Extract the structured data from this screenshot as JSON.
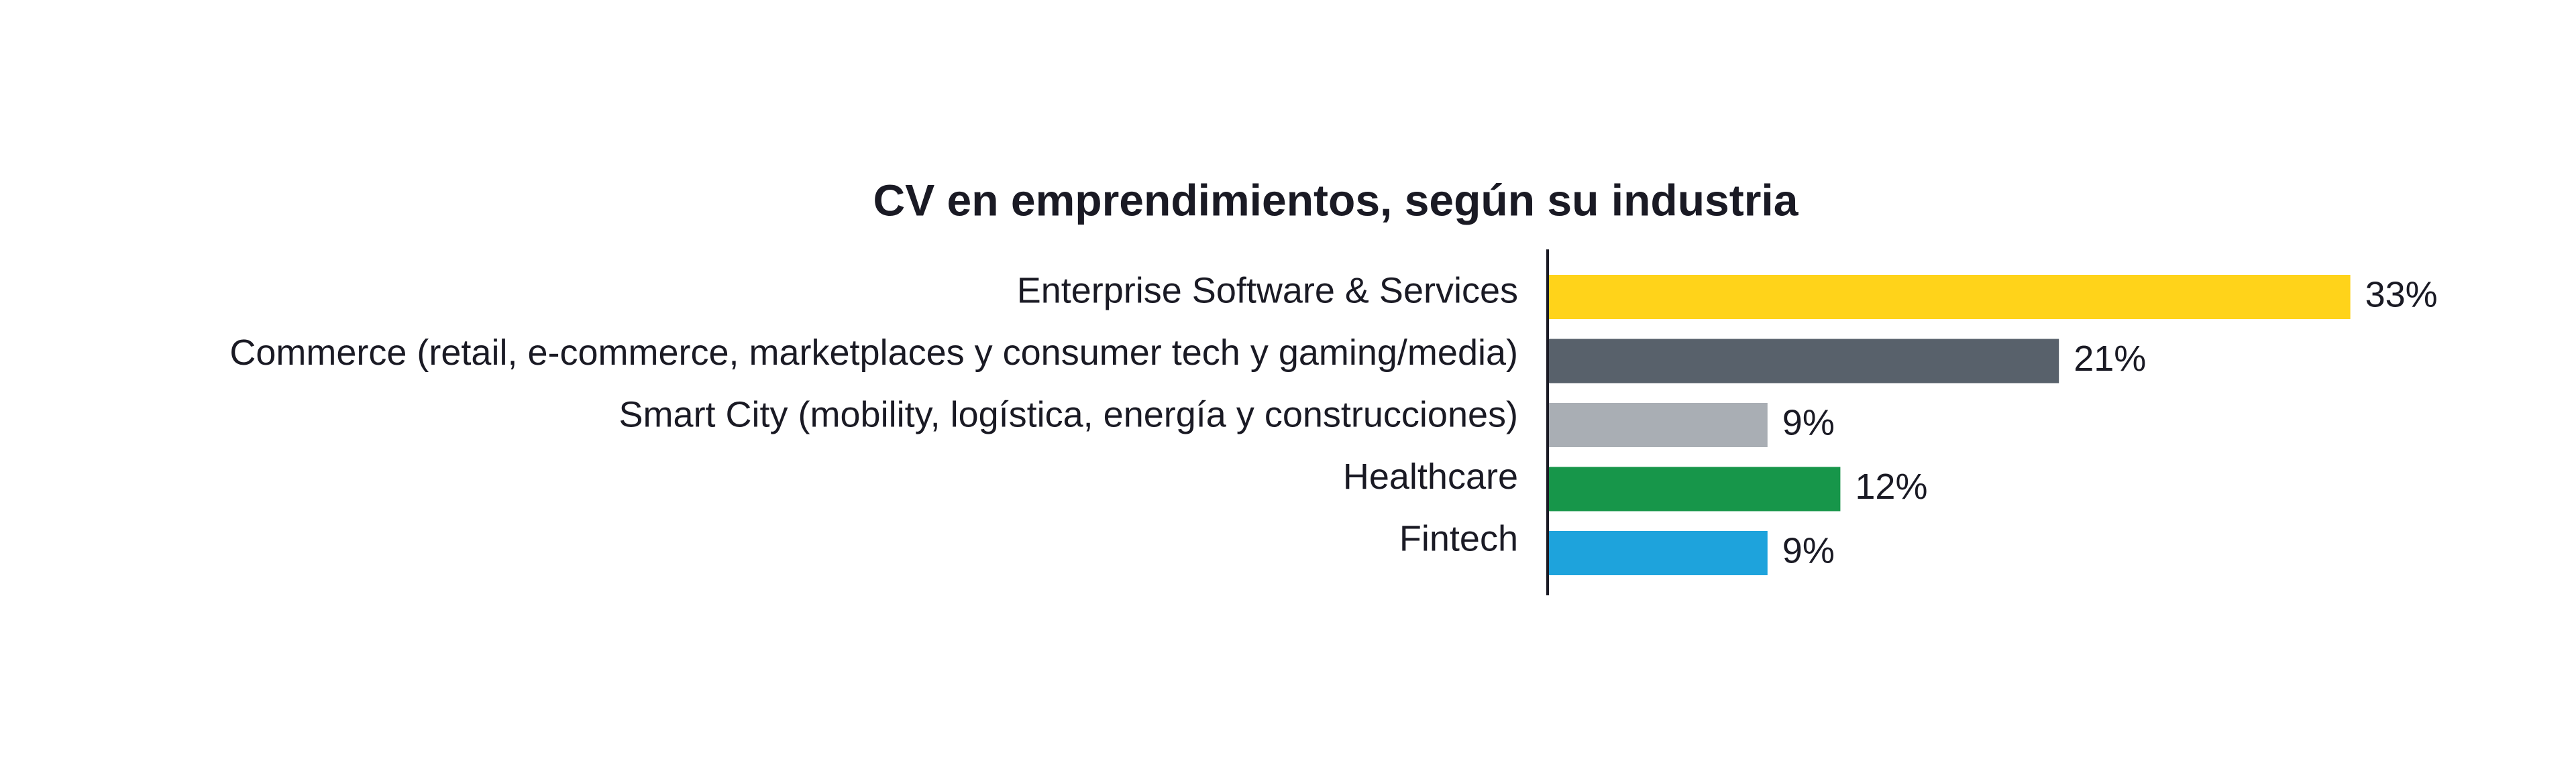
{
  "chart_data": {
    "type": "bar",
    "orientation": "horizontal",
    "title": "CV en emprendimientos, según su industria",
    "categories": [
      "Enterprise Software & Services",
      "Commerce (retail, e-commerce, marketplaces y consumer tech y gaming/media)",
      "Smart City (mobility, logística, energía y construcciones)",
      "Healthcare",
      "Fintech"
    ],
    "values": [
      33,
      21,
      9,
      12,
      9
    ],
    "value_labels": [
      "33%",
      "21%",
      "9%",
      "12%",
      "9%"
    ],
    "colors": [
      "#ffd31a",
      "#58616b",
      "#a9aeb4",
      "#17964a",
      "#1ea3dc"
    ]
  }
}
